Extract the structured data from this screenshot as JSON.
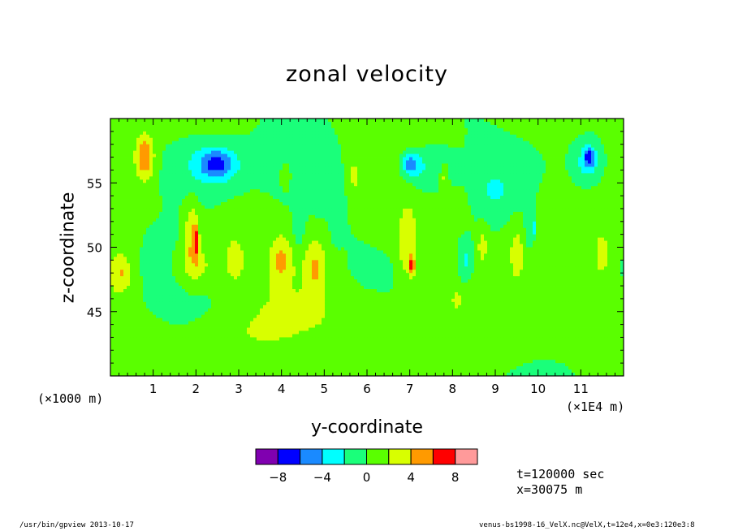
{
  "chart_data": {
    "type": "heatmap",
    "title": "zonal velocity",
    "xlabel": "y-coordinate",
    "ylabel": "z-coordinate",
    "x_unit_left": "(×1000 m)",
    "x_unit_right": "(×1E4 m)",
    "xlim": [
      0,
      120000
    ],
    "ylim": [
      40000,
      60000
    ],
    "xtick_values": [
      10000,
      20000,
      30000,
      40000,
      50000,
      60000,
      70000,
      80000,
      90000,
      100000,
      110000
    ],
    "xtick_labels": [
      "1",
      "2",
      "3",
      "4",
      "5",
      "6",
      "7",
      "8",
      "9",
      "10",
      "11"
    ],
    "ytick_values": [
      45000,
      50000,
      55000
    ],
    "ytick_labels": [
      "45",
      "50",
      "55"
    ],
    "background_level": 0.4,
    "colorbar": {
      "levels": [
        -10,
        -8,
        -6,
        -4,
        -2,
        0,
        2,
        4,
        6,
        8,
        10
      ],
      "tick_values": [
        -8,
        -4,
        0,
        4,
        8
      ],
      "tick_labels": [
        "−8",
        "−4",
        "0",
        "4",
        "8"
      ],
      "colors": [
        "#8000b0",
        "#0000ff",
        "#0080ff",
        "#00ffff",
        "#00ff80",
        "#40ff00",
        "#c0ff00",
        "#ffff00",
        "#ff8000",
        "#ff0000",
        "#ff9090"
      ],
      "band_colors": [
        "#8000b0",
        "#0000ff",
        "#1a8aff",
        "#00ffff",
        "#1aff7a",
        "#5aff00",
        "#d8ff00",
        "#ff9a00",
        "#ff0000",
        "#ff9a9a"
      ]
    },
    "features": [
      {
        "y": 8000,
        "z": 57000,
        "wy": 2200,
        "wz": 1800,
        "v": 5.5
      },
      {
        "y": 2500,
        "z": 48000,
        "wy": 2500,
        "wz": 1600,
        "v": 3.5
      },
      {
        "y": 22000,
        "z": 56200,
        "wy": 9500,
        "wz": 2600,
        "v": -3.2
      },
      {
        "y": 25000,
        "z": 56500,
        "wy": 4200,
        "wz": 1100,
        "v": -5.5
      },
      {
        "y": 19000,
        "z": 51000,
        "wy": 1800,
        "wz": 2600,
        "v": 3.8
      },
      {
        "y": 20000,
        "z": 50500,
        "wy": 600,
        "wz": 1300,
        "v": 5.0
      },
      {
        "y": 20000,
        "z": 48500,
        "wy": 5000,
        "wz": 1800,
        "v": 3.0
      },
      {
        "y": 29000,
        "z": 49000,
        "wy": 2000,
        "wz": 1600,
        "v": 3.0
      },
      {
        "y": 40000,
        "z": 49000,
        "wy": 2200,
        "wz": 1800,
        "v": 3.2
      },
      {
        "y": 48000,
        "z": 48500,
        "wy": 2500,
        "wz": 2200,
        "v": 3.5
      },
      {
        "y": 41000,
        "z": 55500,
        "wy": 1000,
        "wz": 900,
        "v": 3.0
      },
      {
        "y": 44000,
        "z": 51500,
        "wy": 1200,
        "wz": 1300,
        "v": -2.5
      },
      {
        "y": 53000,
        "z": 51500,
        "wy": 1100,
        "wz": 1000,
        "v": -2.0
      },
      {
        "y": 57000,
        "z": 55500,
        "wy": 1000,
        "wz": 1000,
        "v": 3.0
      },
      {
        "y": 74000,
        "z": 56000,
        "wy": 5500,
        "wz": 1900,
        "v": -3.2
      },
      {
        "y": 70000,
        "z": 56500,
        "wy": 2100,
        "wz": 900,
        "v": -5.5
      },
      {
        "y": 69500,
        "z": 50000,
        "wy": 2200,
        "wz": 2600,
        "v": 3.6
      },
      {
        "y": 70500,
        "z": 48600,
        "wy": 600,
        "wz": 700,
        "v": 6.2
      },
      {
        "y": 78000,
        "z": 55500,
        "wy": 1000,
        "wz": 1000,
        "v": 3.0
      },
      {
        "y": 83000,
        "z": 49000,
        "wy": 1400,
        "wz": 1400,
        "v": -2.5
      },
      {
        "y": 87000,
        "z": 50000,
        "wy": 1100,
        "wz": 1300,
        "v": 3.2
      },
      {
        "y": 95000,
        "z": 49500,
        "wy": 1600,
        "wz": 1900,
        "v": 3.0
      },
      {
        "y": 90000,
        "z": 54500,
        "wy": 3500,
        "wz": 1400,
        "v": -2.2
      },
      {
        "y": 98000,
        "z": 52000,
        "wy": 1000,
        "wz": 2000,
        "v": -2.5
      },
      {
        "y": 99000,
        "z": 51500,
        "wy": 300,
        "wz": 600,
        "v": -4.5
      },
      {
        "y": 111500,
        "z": 56500,
        "wy": 3200,
        "wz": 1500,
        "v": -3.0
      },
      {
        "y": 112000,
        "z": 57000,
        "wy": 1300,
        "wz": 800,
        "v": -5.5
      },
      {
        "y": 115000,
        "z": 49500,
        "wy": 1400,
        "wz": 1500,
        "v": 3.0
      },
      {
        "y": 81000,
        "z": 46000,
        "wy": 900,
        "wz": 600,
        "v": 3.0
      },
      {
        "y": 60000,
        "z": 44500,
        "wy": 20000,
        "wz": 2000,
        "v": 1.4
      },
      {
        "y": 30000,
        "z": 43000,
        "wy": 12000,
        "wz": 2200,
        "v": 1.4
      },
      {
        "y": 95000,
        "z": 43500,
        "wy": 14000,
        "wz": 2400,
        "v": 1.3
      }
    ]
  },
  "time_label": "t=120000 sec",
  "xpos_label": "x=30075 m",
  "footer_left": "/usr/bin/gpview  2013-10-17",
  "footer_right": "venus-bs1998-16_VelX.nc@VelX,t=12e4,x=0e3:120e3:8"
}
